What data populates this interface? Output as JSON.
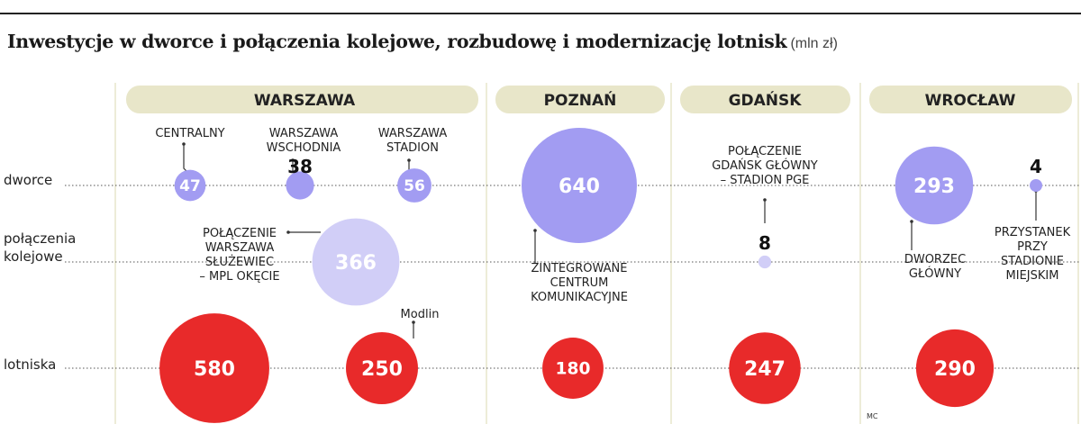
{
  "title": "Inwestycje w dworce i połączenia kolejowe, rozbudowę i modernizację lotnisk",
  "unit": "(mln zł)",
  "credit": "MC",
  "colors": {
    "dworce": "#a29cf2",
    "polaczenia": "#d1cef7",
    "lotniska": "#e82a2a",
    "city_band": "#e8e6c9",
    "divider": "#e3e1c3"
  },
  "chart_data": {
    "type": "bubble",
    "rows": [
      {
        "key": "dworce",
        "label": [
          "dworce"
        ]
      },
      {
        "key": "polaczenia",
        "label": [
          "połączenia",
          "kolejowe"
        ]
      },
      {
        "key": "lotniska",
        "label": [
          "lotniska"
        ]
      }
    ],
    "cities": [
      "WARSZAWA",
      "POZNAŃ",
      "GDAŃSK",
      "WROCŁAW"
    ],
    "items": [
      {
        "city": "WARSZAWA",
        "row": "dworce",
        "value": 47,
        "label": [
          "CENTRALNY"
        ]
      },
      {
        "city": "WARSZAWA",
        "row": "dworce",
        "value": 38,
        "label": [
          "WARSZAWA",
          "WSCHODNIA"
        ]
      },
      {
        "city": "WARSZAWA",
        "row": "dworce",
        "value": 56,
        "label": [
          "WARSZAWA",
          "STADION"
        ]
      },
      {
        "city": "WARSZAWA",
        "row": "polaczenia",
        "value": 366,
        "label": [
          "POŁĄCZENIE",
          "WARSZAWA",
          "SŁUŻEWIEC",
          "– MPL OKĘCIE"
        ]
      },
      {
        "city": "WARSZAWA",
        "row": "lotniska",
        "value": 580,
        "label": []
      },
      {
        "city": "WARSZAWA",
        "row": "lotniska",
        "value": 250,
        "label": [
          "Modlin"
        ]
      },
      {
        "city": "POZNAŃ",
        "row": "dworce",
        "value": 640,
        "label": [
          "ZINTEGROWANE",
          "CENTRUM",
          "KOMUNIKACYJNE"
        ]
      },
      {
        "city": "POZNAŃ",
        "row": "lotniska",
        "value": 180,
        "label": []
      },
      {
        "city": "GDAŃSK",
        "row": "polaczenia",
        "value": 8,
        "label": [
          "POŁĄCZENIE",
          "GDAŃSK GŁÓWNY",
          "– STADION PGE"
        ]
      },
      {
        "city": "GDAŃSK",
        "row": "lotniska",
        "value": 247,
        "label": []
      },
      {
        "city": "WROCŁAW",
        "row": "dworce",
        "value": 293,
        "label": [
          "DWORZEC",
          "GŁÓWNY"
        ]
      },
      {
        "city": "WROCŁAW",
        "row": "dworce",
        "value": 4,
        "label": [
          "PRZYSTANEK",
          "PRZY",
          "STADIONIE",
          "MIEJSKIM"
        ]
      },
      {
        "city": "WROCŁAW",
        "row": "lotniska",
        "value": 290,
        "label": []
      }
    ]
  }
}
